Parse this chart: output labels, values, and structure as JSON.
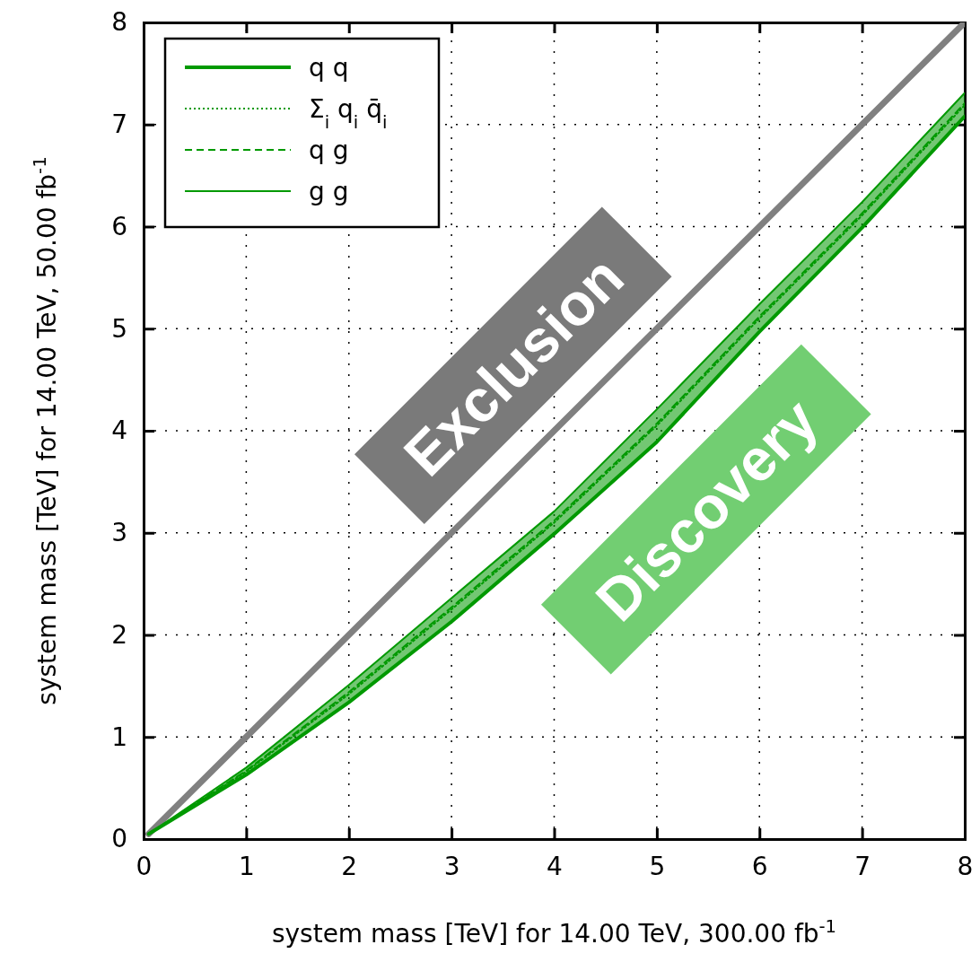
{
  "chart_data": {
    "type": "line",
    "xlabel": "system mass [TeV] for 14.00 TeV, 300.00 fb$^{-1}$",
    "ylabel": "system mass [TeV] for 14.00 TeV, 50.00 fb$^{-1}$",
    "xlim": [
      0,
      8
    ],
    "ylim": [
      0,
      8
    ],
    "xticks": [
      0,
      1,
      2,
      3,
      4,
      5,
      6,
      7,
      8
    ],
    "yticks": [
      0,
      1,
      2,
      3,
      4,
      5,
      6,
      7,
      8
    ],
    "grid": true,
    "legend": "top left",
    "series": [
      {
        "name": "q q",
        "color": "#009900",
        "line_style": "solid",
        "x": [
          0.05,
          1,
          2,
          3,
          4,
          5,
          6,
          7,
          8
        ],
        "values": [
          0.05,
          0.63,
          1.34,
          2.13,
          2.99,
          3.89,
          4.97,
          5.99,
          7.08
        ]
      },
      {
        "name": "Σ$_{i}$ q$_{i}$ q̄$_{i}$",
        "color": "#009900",
        "line_style": "dotted",
        "x": [
          0.05,
          1,
          2,
          3,
          4,
          5,
          6,
          7,
          8
        ],
        "values": [
          0.05,
          0.66,
          1.42,
          2.25,
          3.1,
          4.05,
          5.1,
          6.11,
          7.19
        ]
      },
      {
        "name": "q g",
        "color": "#009900",
        "line_style": "dashed",
        "x": [
          0.05,
          1,
          2,
          3,
          4,
          5,
          6,
          7,
          8
        ],
        "values": [
          0.05,
          0.67,
          1.44,
          2.27,
          3.12,
          4.07,
          5.12,
          6.13,
          7.21
        ],
        "lower": [
          0.05,
          0.63,
          1.34,
          2.13,
          2.99,
          3.89,
          4.97,
          5.99,
          7.08
        ],
        "upper": [
          0.05,
          0.7,
          1.51,
          2.36,
          3.21,
          4.21,
          5.24,
          6.24,
          7.31
        ]
      },
      {
        "name": "g g",
        "color": "#009900",
        "line_style": "solid",
        "x": [
          0.05,
          1,
          2,
          3,
          4,
          5,
          6,
          7,
          8
        ],
        "values": [
          0.05,
          0.7,
          1.51,
          2.36,
          3.21,
          4.21,
          5.24,
          6.24,
          7.31
        ]
      },
      {
        "color": "#808080",
        "line_style": "solid",
        "x": [
          0.05,
          8
        ],
        "values": [
          0.05,
          8
        ]
      }
    ],
    "annotations": [
      "Exclusion",
      "Discovery"
    ]
  }
}
